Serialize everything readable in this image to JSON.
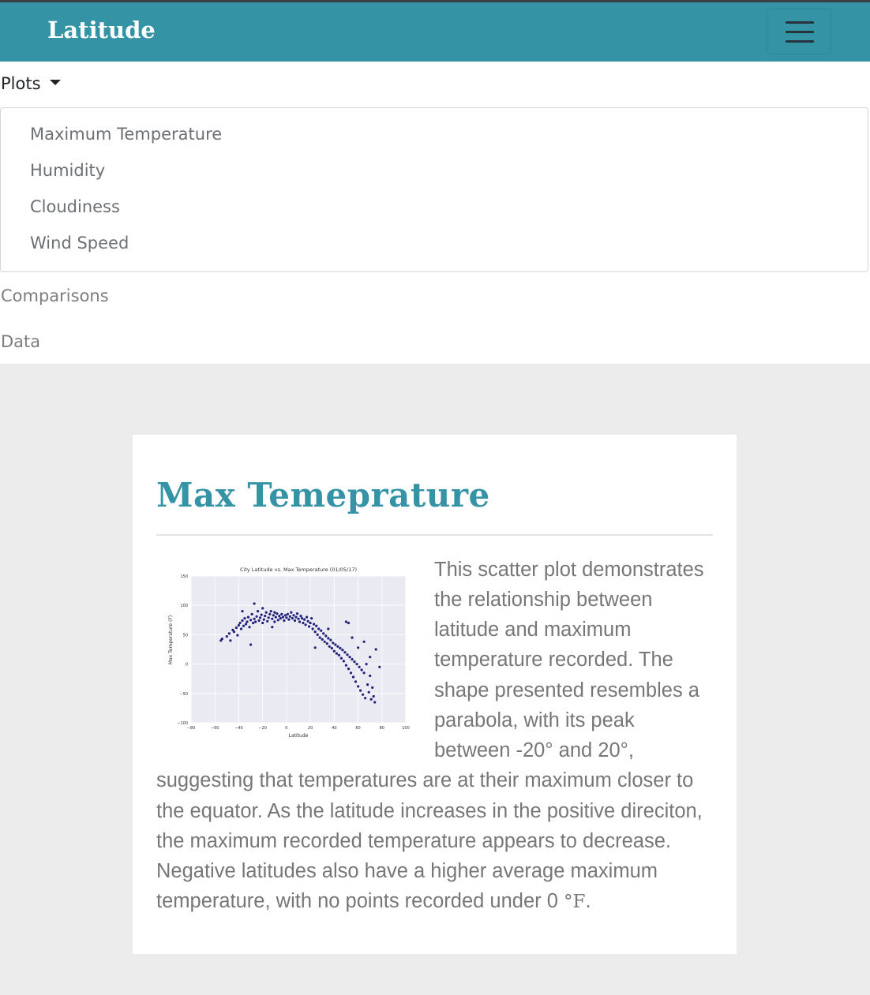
{
  "navbar": {
    "brand": "Latitude",
    "menu_toggle_icon": "hamburger-menu-icon"
  },
  "menu": {
    "plots_label": "Plots",
    "dropdown_items": [
      "Maximum Temperature",
      "Humidity",
      "Cloudiness",
      "Wind Speed"
    ],
    "comparisons_label": "Comparisons",
    "data_label": "Data"
  },
  "colors": {
    "accent": "#3494a6",
    "point": "#0b0b6e",
    "background": "#ececec"
  },
  "card": {
    "title": "Max Temeprature",
    "paragraph_lines": [
      "This scatter plot demonstrates",
      "the relationship between",
      "latitude and maximum",
      "temperature recorded. The",
      "shape presented resembles a",
      "parabola, with its peak",
      "between -20° and 20°,",
      "suggesting that temperatures are at their maximum closer to",
      "the equator. As the latitude increases in the positive direciton,",
      "the maximum recorded temperature appears to decrease.",
      "Negative latitudes also have a higher average maximum",
      "temperature, with no points recorded under 0 "
    ],
    "unit": "°F",
    "period": "."
  },
  "chart_data": {
    "type": "scatter",
    "title": "City Latitude vs. Max Temperature (01/05/17)",
    "xlabel": "Latitude",
    "ylabel": "Max Temperature (F)",
    "xlim": [
      -80,
      100
    ],
    "ylim": [
      -100,
      150
    ],
    "xticks": [
      -80,
      -60,
      -40,
      -20,
      0,
      20,
      40,
      60,
      80,
      100
    ],
    "yticks": [
      -100,
      -50,
      0,
      50,
      100,
      150
    ],
    "grid": true,
    "points": [
      [
        -55,
        40
      ],
      [
        -54,
        43
      ],
      [
        -50,
        47
      ],
      [
        -48,
        52
      ],
      [
        -47,
        40
      ],
      [
        -45,
        58
      ],
      [
        -44,
        55
      ],
      [
        -42,
        62
      ],
      [
        -41,
        49
      ],
      [
        -40,
        66
      ],
      [
        -39,
        70
      ],
      [
        -38,
        60
      ],
      [
        -37,
        74
      ],
      [
        -36,
        65
      ],
      [
        -35,
        78
      ],
      [
        -34,
        68
      ],
      [
        -33,
        72
      ],
      [
        -32,
        80
      ],
      [
        -31,
        63
      ],
      [
        -30,
        75
      ],
      [
        -30,
        33
      ],
      [
        -29,
        85
      ],
      [
        -28,
        70
      ],
      [
        -27,
        77
      ],
      [
        -26,
        72
      ],
      [
        -25,
        81
      ],
      [
        -24,
        90
      ],
      [
        -23,
        74
      ],
      [
        -22,
        79
      ],
      [
        -21,
        84
      ],
      [
        -20,
        70
      ],
      [
        -20,
        95
      ],
      [
        -19,
        76
      ],
      [
        -18,
        82
      ],
      [
        -17,
        88
      ],
      [
        -16,
        73
      ],
      [
        -15,
        79
      ],
      [
        -14,
        85
      ],
      [
        -13,
        90
      ],
      [
        -12,
        77
      ],
      [
        -11,
        83
      ],
      [
        -10,
        72
      ],
      [
        -10,
        88
      ],
      [
        -9,
        80
      ],
      [
        -8,
        86
      ],
      [
        -7,
        75
      ],
      [
        -6,
        82
      ],
      [
        -5,
        78
      ],
      [
        -4,
        85
      ],
      [
        -3,
        80
      ],
      [
        -2,
        74
      ],
      [
        -1,
        83
      ],
      [
        0,
        79
      ],
      [
        1,
        85
      ],
      [
        2,
        76
      ],
      [
        3,
        81
      ],
      [
        4,
        88
      ],
      [
        5,
        78
      ],
      [
        6,
        83
      ],
      [
        7,
        74
      ],
      [
        8,
        80
      ],
      [
        9,
        86
      ],
      [
        10,
        77
      ],
      [
        11,
        72
      ],
      [
        12,
        82
      ],
      [
        13,
        78
      ],
      [
        14,
        70
      ],
      [
        15,
        76
      ],
      [
        16,
        67
      ],
      [
        17,
        80
      ],
      [
        18,
        73
      ],
      [
        19,
        64
      ],
      [
        20,
        70
      ],
      [
        21,
        78
      ],
      [
        22,
        60
      ],
      [
        23,
        68
      ],
      [
        24,
        55
      ],
      [
        25,
        65
      ],
      [
        26,
        50
      ],
      [
        27,
        60
      ],
      [
        28,
        45
      ],
      [
        29,
        57
      ],
      [
        30,
        42
      ],
      [
        31,
        52
      ],
      [
        32,
        38
      ],
      [
        33,
        48
      ],
      [
        34,
        35
      ],
      [
        35,
        44
      ],
      [
        36,
        30
      ],
      [
        37,
        41
      ],
      [
        38,
        27
      ],
      [
        39,
        36
      ],
      [
        40,
        22
      ],
      [
        41,
        33
      ],
      [
        42,
        18
      ],
      [
        43,
        30
      ],
      [
        44,
        15
      ],
      [
        45,
        27
      ],
      [
        46,
        10
      ],
      [
        47,
        24
      ],
      [
        48,
        5
      ],
      [
        49,
        20
      ],
      [
        50,
        -2
      ],
      [
        51,
        16
      ],
      [
        52,
        -8
      ],
      [
        53,
        12
      ],
      [
        54,
        -15
      ],
      [
        55,
        8
      ],
      [
        56,
        -22
      ],
      [
        57,
        4
      ],
      [
        58,
        -30
      ],
      [
        59,
        0
      ],
      [
        60,
        -38
      ],
      [
        61,
        -5
      ],
      [
        62,
        -45
      ],
      [
        63,
        -10
      ],
      [
        64,
        -52
      ],
      [
        65,
        -15
      ],
      [
        66,
        -58
      ],
      [
        67,
        0
      ],
      [
        68,
        -35
      ],
      [
        69,
        -48
      ],
      [
        70,
        -20
      ],
      [
        71,
        -60
      ],
      [
        72,
        -40
      ],
      [
        73,
        -55
      ],
      [
        74,
        -65
      ],
      [
        55,
        45
      ],
      [
        60,
        28
      ],
      [
        65,
        38
      ],
      [
        70,
        12
      ],
      [
        75,
        25
      ],
      [
        78,
        -5
      ],
      [
        50,
        72
      ],
      [
        52,
        70
      ],
      [
        -37,
        90
      ],
      [
        -27,
        103
      ],
      [
        -12,
        63
      ],
      [
        24,
        28
      ],
      [
        35,
        60
      ]
    ]
  }
}
